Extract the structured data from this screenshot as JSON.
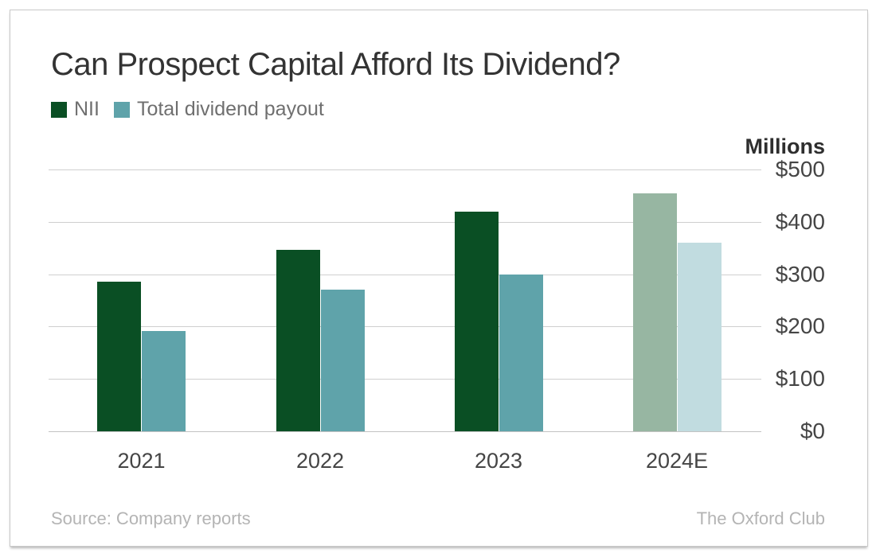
{
  "card": {
    "title": "Can Prospect Capital Afford Its Dividend?",
    "source": "Source: Company reports",
    "brand": "The Oxford Club"
  },
  "legend": [
    {
      "label": "NII",
      "color": "#0a4f24"
    },
    {
      "label": "Total dividend payout",
      "color": "#5fa3aa"
    }
  ],
  "chart_data": {
    "type": "bar",
    "title": "Can Prospect Capital Afford Its Dividend?",
    "unit_label": "Millions",
    "categories": [
      "2021",
      "2022",
      "2023",
      "2024E"
    ],
    "series": [
      {
        "name": "NII",
        "values": [
          285,
          346,
          420,
          455
        ],
        "color": "#0a4f24",
        "estimate_color": "#97b6a2"
      },
      {
        "name": "Total dividend payout",
        "values": [
          192,
          270,
          300,
          360
        ],
        "color": "#5fa3aa",
        "estimate_color": "#c1dce0"
      }
    ],
    "estimate_category": "2024E",
    "ylim": [
      0,
      500
    ],
    "y_ticks": [
      "$500",
      "$400",
      "$300",
      "$200",
      "$100",
      "$0"
    ],
    "grid": true,
    "axis_side": "right",
    "legend_position": "top-left",
    "source": "Source: Company reports",
    "brand": "The Oxford Club"
  }
}
